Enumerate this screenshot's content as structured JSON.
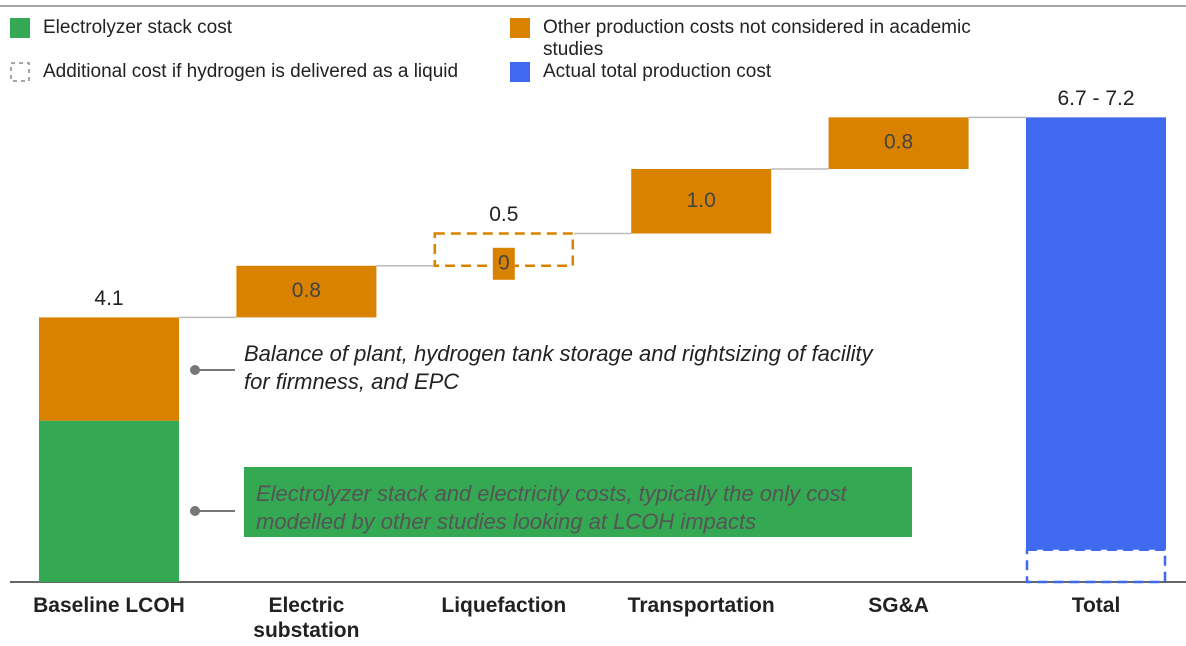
{
  "chart_data": {
    "type": "waterfall",
    "categories": [
      "Baseline LCOH",
      "Electric substation",
      "Liquefaction",
      "Transportation",
      "SG&A",
      "Total"
    ],
    "series": [
      {
        "name": "Electrolyzer stack cost",
        "color": "#34a853",
        "values": [
          2.5,
          null,
          null,
          null,
          null,
          null
        ]
      },
      {
        "name": "Other production costs not considered in academic studies",
        "color": "#d98200",
        "values": [
          1.6,
          0.8,
          0,
          1.0,
          0.8,
          null
        ],
        "value_labels": [
          null,
          "0.8",
          "0",
          "1.0",
          "0.8",
          null
        ]
      },
      {
        "name": "Additional cost if hydrogen is delivered as a liquid",
        "color": "#d98200",
        "style": "dashed",
        "values": [
          null,
          null,
          0.5,
          null,
          null,
          0.5
        ]
      },
      {
        "name": "Actual total production cost",
        "color": "#4169f0",
        "values": [
          null,
          null,
          null,
          null,
          null,
          6.7
        ]
      }
    ],
    "top_labels": [
      "4.1",
      null,
      "0.5",
      null,
      null,
      "6.7 - 7.2"
    ],
    "ylim": [
      0,
      7.5
    ],
    "annotations": [
      {
        "text": "Balance of plant, hydrogen tank storage and rightsizing of facility for firmness, and EPC"
      },
      {
        "text": "Electrolyzer stack and electricity costs, typically the only cost modelled by other studies looking at LCOH impacts",
        "color": "#34a853"
      }
    ]
  }
}
